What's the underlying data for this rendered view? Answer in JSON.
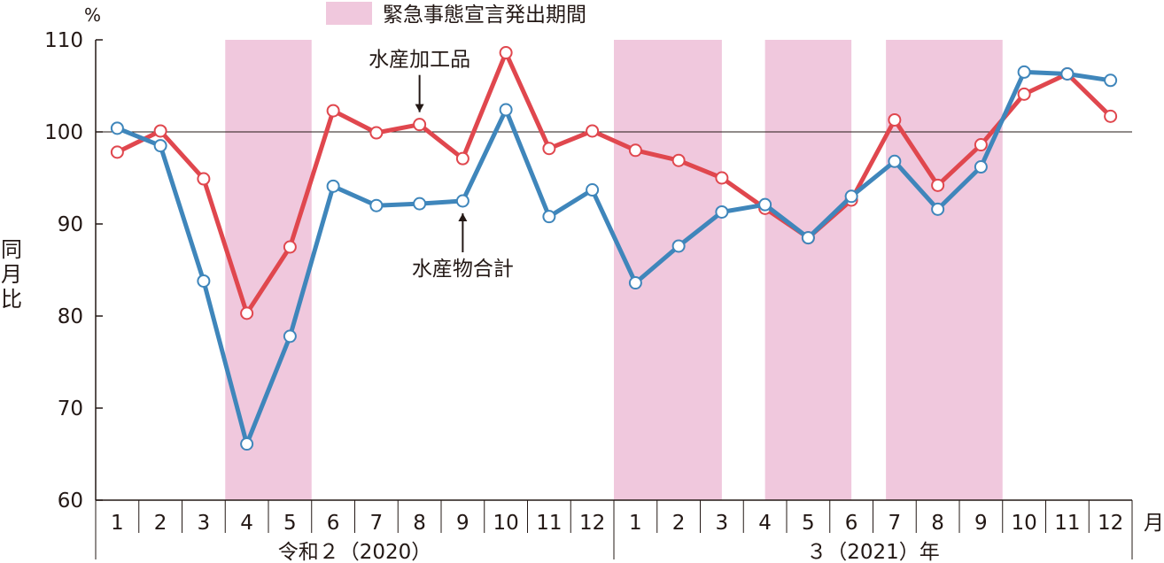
{
  "chart_data": {
    "type": "line",
    "legend": {
      "label": "緊急事態宣言発出期間",
      "color": "#f0c8dd",
      "placement": "top-center"
    },
    "y_unit": "%",
    "ylabel": "同月比",
    "ylim": [
      60,
      110
    ],
    "yticks": [
      60,
      70,
      80,
      90,
      100,
      110
    ],
    "reference_line": 100,
    "x_unit": "月",
    "months": [
      "1",
      "2",
      "3",
      "4",
      "5",
      "6",
      "7",
      "8",
      "9",
      "10",
      "11",
      "12",
      "1",
      "2",
      "3",
      "4",
      "5",
      "6",
      "7",
      "8",
      "9",
      "10",
      "11",
      "12"
    ],
    "year_groups": [
      {
        "label": "令和２（2020）",
        "start": 0,
        "end": 11
      },
      {
        "label": "３（2021）年",
        "start": 12,
        "end": 23
      }
    ],
    "emergency_periods": [
      [
        3.0,
        5.0
      ],
      [
        12.0,
        14.5
      ],
      [
        15.5,
        17.5
      ],
      [
        18.3,
        21.0
      ]
    ],
    "series": [
      {
        "name": "水産加工品",
        "color": "#e0474e",
        "values": [
          97.8,
          100.1,
          94.9,
          80.3,
          87.5,
          102.3,
          99.9,
          100.8,
          97.1,
          108.6,
          98.2,
          100.1,
          98.0,
          96.9,
          95.0,
          91.7,
          88.5,
          92.6,
          101.3,
          94.2,
          98.6,
          104.1,
          106.3,
          101.7
        ]
      },
      {
        "name": "水産物合計",
        "color": "#3f86bb",
        "values": [
          100.4,
          98.5,
          83.8,
          66.1,
          77.8,
          94.1,
          92.0,
          92.2,
          92.5,
          102.4,
          90.8,
          93.7,
          83.6,
          87.6,
          91.3,
          92.1,
          88.5,
          93.0,
          96.8,
          91.6,
          96.2,
          106.5,
          106.3,
          105.6
        ]
      }
    ],
    "annotations": [
      {
        "text": "水産加工品",
        "series": "水産加工品",
        "month_index": 7,
        "position": "above"
      },
      {
        "text": "水産物合計",
        "series": "水産物合計",
        "month_index": 8,
        "position": "below"
      }
    ]
  }
}
